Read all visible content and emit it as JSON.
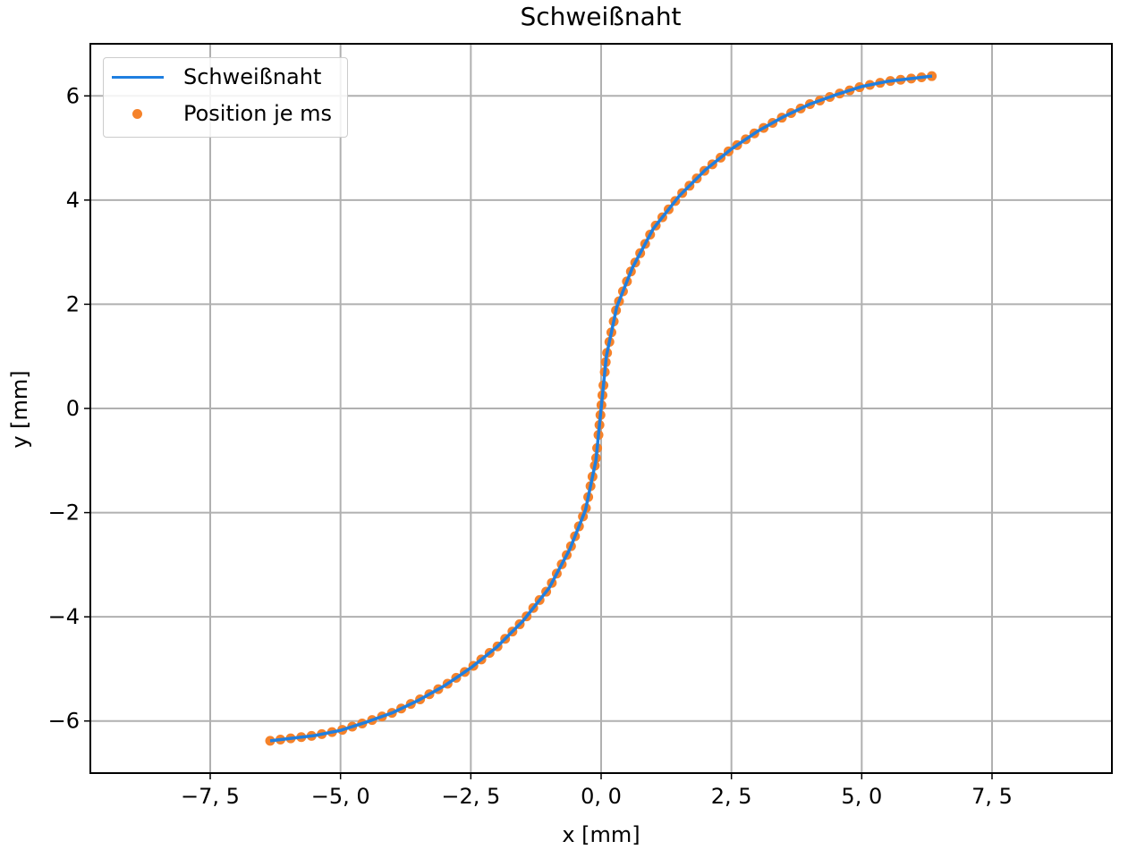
{
  "chart_data": {
    "type": "line",
    "title": "Schweißnaht",
    "xlabel": "x [mm]",
    "ylabel": "y [mm]",
    "xlim": [
      -9.8,
      9.8
    ],
    "ylim": [
      -7.0,
      7.0
    ],
    "xticks": [
      -7.5,
      -5.0,
      -2.5,
      0.0,
      2.5,
      5.0,
      7.5
    ],
    "xtick_labels": [
      "−7, 5",
      "−5, 0",
      "−2, 5",
      "0, 0",
      "2, 5",
      "5, 0",
      "7, 5"
    ],
    "yticks": [
      -6,
      -4,
      -2,
      0,
      2,
      4,
      6
    ],
    "ytick_labels": [
      "−6",
      "−4",
      "−2",
      "0",
      "2",
      "4",
      "6"
    ],
    "grid": true,
    "legend_position": "top-left",
    "series": [
      {
        "name": "Schweißnaht",
        "kind": "line",
        "color": "#1f7fe0",
        "x_start": -6.35,
        "x_end": 6.35,
        "curve": "y = 6.5 * sign(x) * (1 - exp(-(|x|/1.8)^0.75 * 1.35)) approx",
        "points": [
          [
            -6.35,
            -6.38
          ],
          [
            -5.5,
            -6.28
          ],
          [
            -5.0,
            -6.18
          ],
          [
            -4.5,
            -6.02
          ],
          [
            -4.0,
            -5.84
          ],
          [
            -3.5,
            -5.6
          ],
          [
            -3.0,
            -5.32
          ],
          [
            -2.5,
            -4.98
          ],
          [
            -2.0,
            -4.58
          ],
          [
            -1.5,
            -4.08
          ],
          [
            -1.0,
            -3.45
          ],
          [
            -0.6,
            -2.7
          ],
          [
            -0.3,
            -1.95
          ],
          [
            -0.1,
            -1.0
          ],
          [
            0.0,
            0.0
          ],
          [
            0.1,
            1.0
          ],
          [
            0.3,
            1.95
          ],
          [
            0.6,
            2.7
          ],
          [
            1.0,
            3.45
          ],
          [
            1.5,
            4.08
          ],
          [
            2.0,
            4.58
          ],
          [
            2.5,
            4.98
          ],
          [
            3.0,
            5.32
          ],
          [
            3.5,
            5.6
          ],
          [
            4.0,
            5.84
          ],
          [
            4.5,
            6.02
          ],
          [
            5.0,
            6.18
          ],
          [
            5.5,
            6.28
          ],
          [
            6.35,
            6.38
          ]
        ]
      },
      {
        "name": "Position je ms",
        "kind": "scatter",
        "color": "#f5822a",
        "count": 100
      }
    ]
  }
}
